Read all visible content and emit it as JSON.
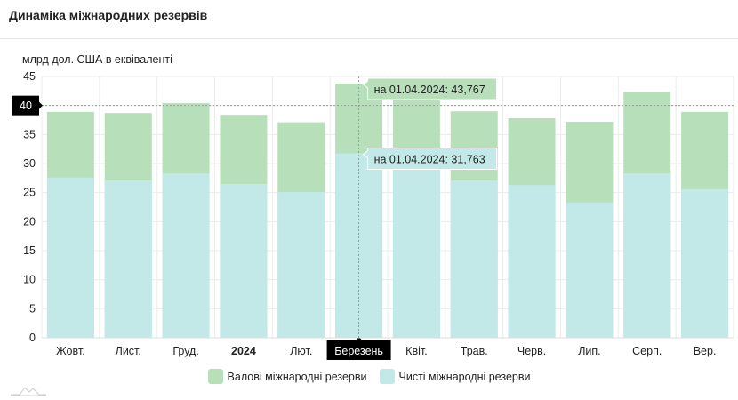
{
  "header": {
    "title": "Динаміка міжнародних резервів"
  },
  "chart_data": {
    "type": "bar",
    "stacked": "overlay",
    "ylabel": "млрд дол. США в еквіваленті",
    "ylim": [
      0,
      45
    ],
    "yticks": [
      0,
      5,
      10,
      15,
      20,
      25,
      30,
      35,
      40,
      45
    ],
    "categories": [
      "Жовт.",
      "Лист.",
      "Груд.",
      "2024",
      "Лют.",
      "Березень",
      "Квіт.",
      "Трав.",
      "Черв.",
      "Лип.",
      "Серп.",
      "Вер."
    ],
    "bold_categories": [
      "2024"
    ],
    "series": [
      {
        "name": "Валові міжнародні резерви",
        "color": "#b7dfb9",
        "values": [
          38.9,
          38.7,
          40.4,
          38.4,
          37.1,
          43.767,
          42.5,
          39.0,
          37.8,
          37.2,
          42.3,
          38.9
        ]
      },
      {
        "name": "Чисті міжнародні резерви",
        "color": "#c3e8e8",
        "values": [
          27.6,
          27.1,
          28.3,
          26.5,
          25.1,
          31.763,
          30.0,
          27.1,
          26.3,
          23.3,
          28.3,
          25.6
        ]
      }
    ],
    "crosshair": {
      "category": "Березень",
      "y_label": "40"
    },
    "tooltips": [
      "на 01.04.2024: 43,767",
      "на 01.04.2024: 31,763"
    ],
    "legend_position": "bottom"
  }
}
